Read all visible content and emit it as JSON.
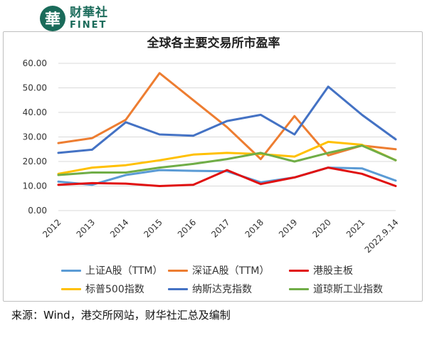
{
  "brand": {
    "badge_char": "華",
    "name_cn": "财華社",
    "name_en": "FINET",
    "color": "#1a6b5a"
  },
  "source_text": "来源：Wind，港交所网站，财华社汇总及编制",
  "chart_data": {
    "type": "line",
    "title": "全球各主要交易所市盈率",
    "xlabel": "",
    "ylabel": "",
    "categories": [
      "2012",
      "2013",
      "2014",
      "2015",
      "2016",
      "2017",
      "2018",
      "2019",
      "2020",
      "2021",
      "2022.9.14"
    ],
    "ylim": [
      0,
      60
    ],
    "yticks": [
      "0.00",
      "10.00",
      "20.00",
      "30.00",
      "40.00",
      "50.00",
      "60.00"
    ],
    "grid": true,
    "legend_position": "bottom",
    "series": [
      {
        "name": "上证A股（TTM）",
        "color": "#5b9bd5",
        "values": [
          11.8,
          10.5,
          14.5,
          16.5,
          16.2,
          16.0,
          11.5,
          13.5,
          17.5,
          17.2,
          12.2
        ]
      },
      {
        "name": "深证A股（TTM）",
        "color": "#ed7d31",
        "values": [
          27.5,
          29.5,
          37.0,
          56.0,
          45.0,
          34.0,
          21.0,
          38.5,
          22.5,
          26.5,
          25.0
        ]
      },
      {
        "name": "港股主板",
        "color": "#e01010",
        "values": [
          10.5,
          11.2,
          11.0,
          10.0,
          10.5,
          16.5,
          10.8,
          13.5,
          17.5,
          15.0,
          10.0
        ]
      },
      {
        "name": "标普500指数",
        "color": "#ffc000",
        "values": [
          15.0,
          17.5,
          18.5,
          20.5,
          22.8,
          23.5,
          23.0,
          22.0,
          28.0,
          26.8,
          20.5
        ]
      },
      {
        "name": "纳斯达克指数",
        "color": "#4472c4",
        "values": [
          23.5,
          24.8,
          36.0,
          31.0,
          30.5,
          36.5,
          39.0,
          31.0,
          50.5,
          39.0,
          29.0
        ]
      },
      {
        "name": "道琼斯工业指数",
        "color": "#70ad47",
        "values": [
          14.5,
          15.5,
          15.5,
          17.5,
          19.0,
          21.0,
          23.5,
          20.0,
          23.5,
          26.5,
          20.5
        ]
      }
    ]
  }
}
